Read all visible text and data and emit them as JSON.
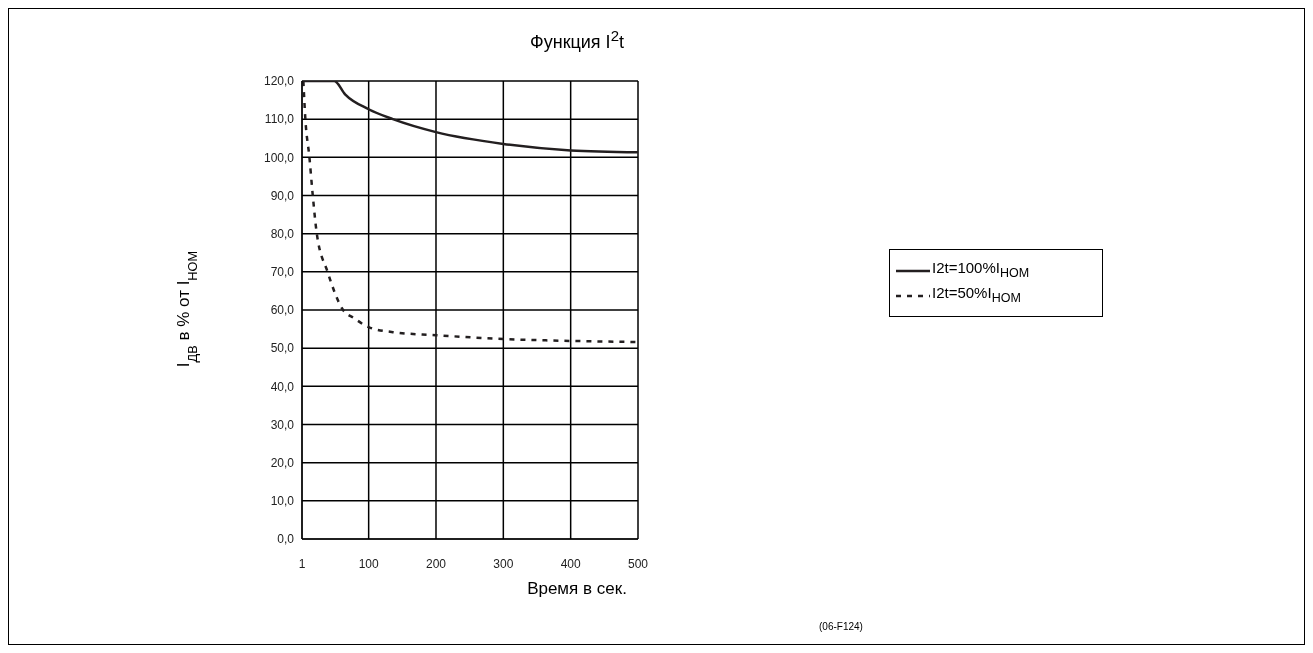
{
  "chart_data": {
    "type": "line",
    "title": "Функция I$^{2}$t",
    "xlabel": "Время в сек.",
    "ylabel": "I$_{ДВ}$ в % от I$_{НОМ}$",
    "xlim": [
      1,
      500
    ],
    "xticks": [
      1,
      100,
      200,
      300,
      400,
      500
    ],
    "ylim": [
      0,
      120
    ],
    "yticks": [
      {
        "value": 0,
        "label": "0,0"
      },
      {
        "value": 10,
        "label": "10,0"
      },
      {
        "value": 20,
        "label": "20,0"
      },
      {
        "value": 30,
        "label": "30,0"
      },
      {
        "value": 40,
        "label": "40,0"
      },
      {
        "value": 50,
        "label": "50,0"
      },
      {
        "value": 60,
        "label": "60,0"
      },
      {
        "value": 70,
        "label": "70,0"
      },
      {
        "value": 80,
        "label": "80,0"
      },
      {
        "value": 90,
        "label": "90,0"
      },
      {
        "value": 100,
        "label": "100,0"
      },
      {
        "value": 110,
        "label": "110,0"
      },
      {
        "value": 120,
        "label": "120,0"
      }
    ],
    "grid": true,
    "legend": "right",
    "marker": "none",
    "series": [
      {
        "name": "I2t=100%I$_{НОМ}$",
        "color": "#231f20",
        "line_style": "solid",
        "x": [
          1,
          49,
          65,
          100,
          136,
          200,
          300,
          400,
          500
        ],
        "values": [
          120,
          120,
          116.5,
          112.6,
          110,
          106.6,
          103.5,
          101.8,
          101.3
        ]
      },
      {
        "name": "I2t=50%I$_{НОМ}$",
        "color": "#231f20",
        "line_style": "dashed",
        "x": [
          3,
          6,
          12,
          17,
          23,
          39,
          62,
          78,
          100,
          136,
          200,
          300,
          400,
          500
        ],
        "values": [
          120,
          110,
          100,
          90,
          80,
          70,
          60,
          57.9,
          55.5,
          54.2,
          53.4,
          52.4,
          51.9,
          51.6
        ]
      }
    ],
    "annotations": [
      "(06-F124)"
    ]
  }
}
